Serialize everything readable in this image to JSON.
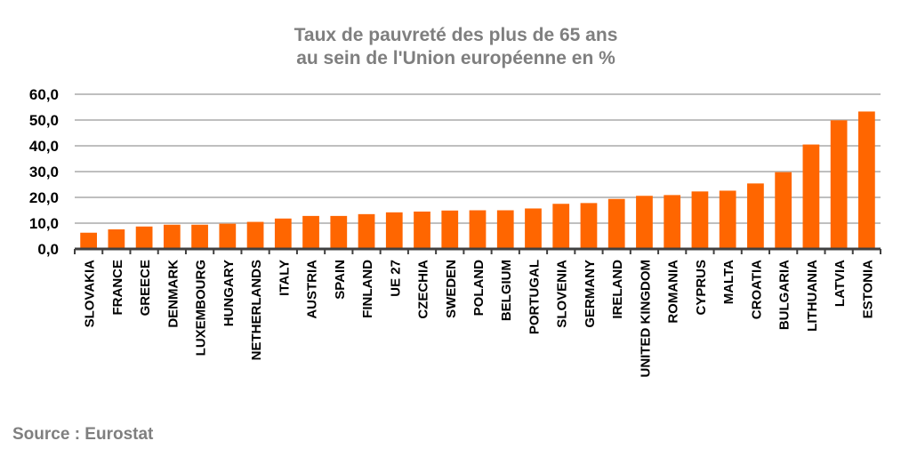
{
  "chart_data": {
    "type": "bar",
    "title": "Taux de pauvreté des plus de 65 ans",
    "subtitle": "au sein de l'Union européenne en %",
    "xlabel": "",
    "ylabel": "",
    "ylim": [
      0,
      60
    ],
    "yticks": [
      "0,0",
      "10,0",
      "20,0",
      "30,0",
      "40,0",
      "50,0",
      "60,0"
    ],
    "grid": true,
    "bar_color": "#ff6600",
    "categories": [
      "SLOVAKIA",
      "FRANCE",
      "GREECE",
      "DENMARK",
      "LUXEMBOURG",
      "HUNGARY",
      "NETHERLANDS",
      "ITALY",
      "AUSTRIA",
      "SPAIN",
      "FINLAND",
      "UE 27",
      "CZECHIA",
      "SWEDEN",
      "POLAND",
      "BELGIUM",
      "PORTUGAL",
      "SLOVENIA",
      "GERMANY",
      "IRELAND",
      "UNITED KINGDOM",
      "ROMANIA",
      "CYPRUS",
      "MALTA",
      "CROATIA",
      "BULGARIA",
      "LITHUANIA",
      "LATVIA",
      "ESTONIA"
    ],
    "values": [
      6.3,
      7.6,
      8.7,
      9.4,
      9.4,
      9.8,
      10.5,
      11.8,
      12.8,
      12.8,
      13.5,
      14.2,
      14.5,
      14.9,
      15.0,
      15.0,
      15.7,
      17.5,
      17.8,
      19.4,
      20.6,
      20.9,
      22.3,
      22.6,
      25.4,
      29.8,
      40.5,
      49.9,
      53.3
    ]
  },
  "source": "Source :  Eurostat"
}
